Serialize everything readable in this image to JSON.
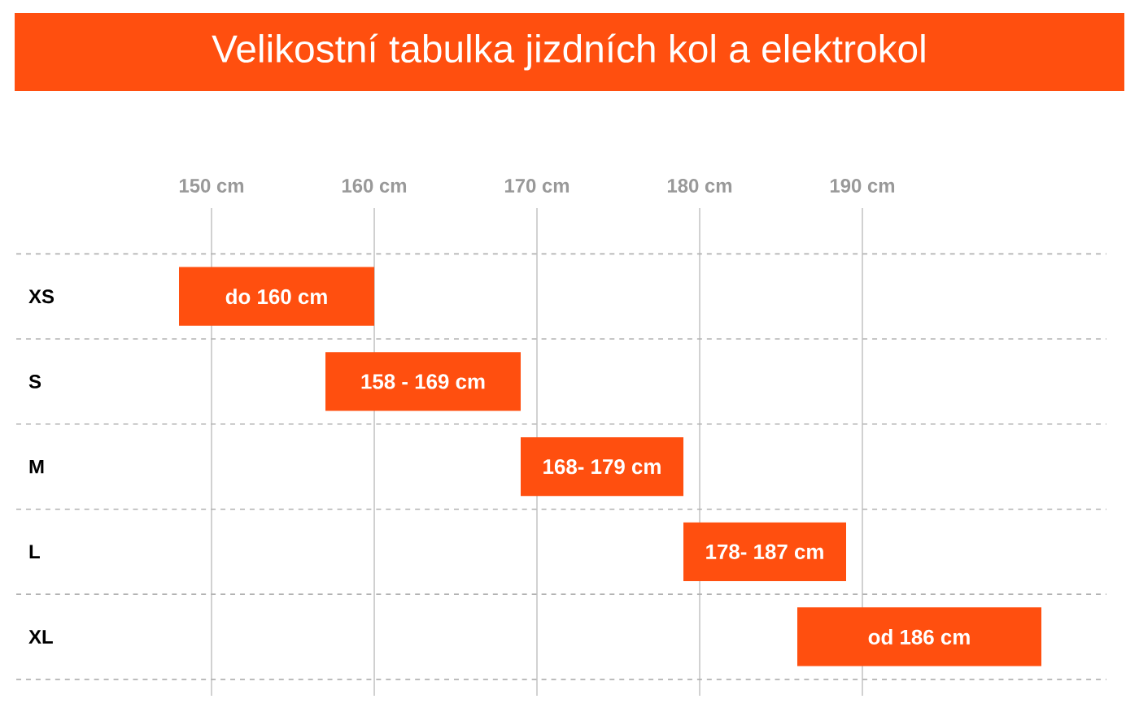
{
  "chart_data": {
    "type": "bar",
    "orientation": "horizontal",
    "title": "Velikostní tabulka jizdních kol a elektrokol",
    "categories": [
      "XS",
      "S",
      "M",
      "L",
      "XL"
    ],
    "base": [
      148,
      157,
      169,
      179,
      186
    ],
    "values": [
      12,
      12,
      10,
      10,
      15
    ],
    "annotations": [
      "do 160 cm",
      "158 - 169 cm",
      "168- 179 cm",
      "178- 187 cm",
      "od 186 cm"
    ],
    "color": "#ff4f0f",
    "xlim": [
      138,
      205
    ],
    "xticks": [
      {
        "value": 150,
        "label": "150 cm"
      },
      {
        "value": 160,
        "label": "160 cm"
      },
      {
        "value": 170,
        "label": "170 cm"
      },
      {
        "value": 180,
        "label": "180 cm"
      },
      {
        "value": 190,
        "label": "190 cm"
      }
    ],
    "grid": true
  }
}
